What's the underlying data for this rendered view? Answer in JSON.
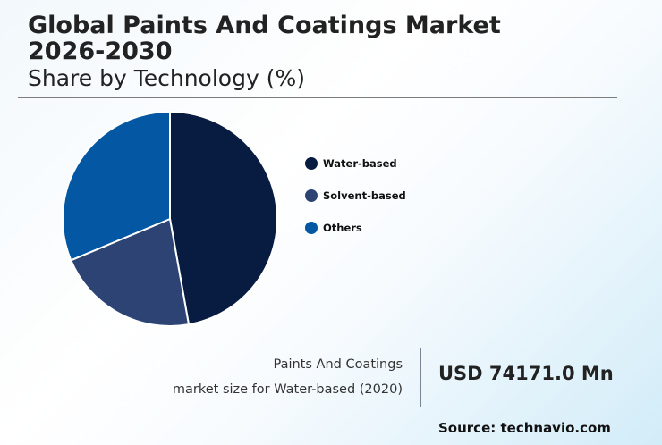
{
  "header": {
    "title_line1": "Global Paints And Coatings Market",
    "title_line2": "2026-2030",
    "subtitle": "Share by Technology (%)"
  },
  "legend": [
    {
      "label": "Water-based",
      "color": "#081c42"
    },
    {
      "label": "Solvent-based",
      "color": "#2c4374"
    },
    {
      "label": "Others",
      "color": "#0457a3"
    }
  ],
  "kpi": {
    "label_line1": "Paints And Coatings",
    "label_line2": "market size for Water-based (2020)",
    "value": "USD 74171.0 Mn"
  },
  "source": "Source: technavio.com",
  "chart_data": {
    "type": "pie",
    "title": "Global Paints And Coatings Market 2026-2030",
    "subtitle": "Share by Technology (%)",
    "categories": [
      "Water-based",
      "Solvent-based",
      "Others"
    ],
    "values": [
      47.2,
      21.5,
      31.3
    ],
    "colors": [
      "#081c42",
      "#2c4374",
      "#0457a3"
    ],
    "start_angle": "12 o'clock, clockwise",
    "legend_position": "right",
    "annotation": "Paints And Coatings market size for Water-based (2020): USD 74171.0 Mn"
  }
}
